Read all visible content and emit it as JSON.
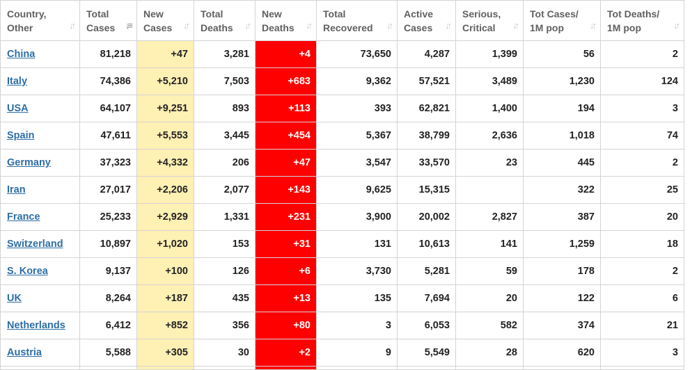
{
  "table": {
    "headers": {
      "country": [
        "Country,",
        "Other"
      ],
      "total_cases": [
        "Total",
        "Cases"
      ],
      "new_cases": [
        "New",
        "Cases"
      ],
      "total_deaths": [
        "Total",
        "Deaths"
      ],
      "new_deaths": [
        "New",
        "Deaths"
      ],
      "total_recovered": [
        "Total",
        "Recovered"
      ],
      "active_cases": [
        "Active",
        "Cases"
      ],
      "serious_critical": [
        "Serious,",
        "Critical"
      ],
      "tot_cases_1m": [
        "Tot Cases/",
        "1M pop"
      ],
      "tot_deaths_1m": [
        "Tot Deaths/",
        "1M pop"
      ]
    },
    "sort_icon": "sort-updown-icon",
    "active_sort_icon": "sort-desc-icon",
    "rows": [
      {
        "country": "China",
        "total_cases": "81,218",
        "new_cases": "+47",
        "total_deaths": "3,281",
        "new_deaths": "+4",
        "total_recovered": "73,650",
        "active_cases": "4,287",
        "serious_critical": "1,399",
        "tot_cases_1m": "56",
        "tot_deaths_1m": "2"
      },
      {
        "country": "Italy",
        "total_cases": "74,386",
        "new_cases": "+5,210",
        "total_deaths": "7,503",
        "new_deaths": "+683",
        "total_recovered": "9,362",
        "active_cases": "57,521",
        "serious_critical": "3,489",
        "tot_cases_1m": "1,230",
        "tot_deaths_1m": "124"
      },
      {
        "country": "USA",
        "total_cases": "64,107",
        "new_cases": "+9,251",
        "total_deaths": "893",
        "new_deaths": "+113",
        "total_recovered": "393",
        "active_cases": "62,821",
        "serious_critical": "1,400",
        "tot_cases_1m": "194",
        "tot_deaths_1m": "3"
      },
      {
        "country": "Spain",
        "total_cases": "47,611",
        "new_cases": "+5,553",
        "total_deaths": "3,445",
        "new_deaths": "+454",
        "total_recovered": "5,367",
        "active_cases": "38,799",
        "serious_critical": "2,636",
        "tot_cases_1m": "1,018",
        "tot_deaths_1m": "74"
      },
      {
        "country": "Germany",
        "total_cases": "37,323",
        "new_cases": "+4,332",
        "total_deaths": "206",
        "new_deaths": "+47",
        "total_recovered": "3,547",
        "active_cases": "33,570",
        "serious_critical": "23",
        "tot_cases_1m": "445",
        "tot_deaths_1m": "2"
      },
      {
        "country": "Iran",
        "total_cases": "27,017",
        "new_cases": "+2,206",
        "total_deaths": "2,077",
        "new_deaths": "+143",
        "total_recovered": "9,625",
        "active_cases": "15,315",
        "serious_critical": "",
        "tot_cases_1m": "322",
        "tot_deaths_1m": "25"
      },
      {
        "country": "France",
        "total_cases": "25,233",
        "new_cases": "+2,929",
        "total_deaths": "1,331",
        "new_deaths": "+231",
        "total_recovered": "3,900",
        "active_cases": "20,002",
        "serious_critical": "2,827",
        "tot_cases_1m": "387",
        "tot_deaths_1m": "20"
      },
      {
        "country": "Switzerland",
        "total_cases": "10,897",
        "new_cases": "+1,020",
        "total_deaths": "153",
        "new_deaths": "+31",
        "total_recovered": "131",
        "active_cases": "10,613",
        "serious_critical": "141",
        "tot_cases_1m": "1,259",
        "tot_deaths_1m": "18"
      },
      {
        "country": "S. Korea",
        "total_cases": "9,137",
        "new_cases": "+100",
        "total_deaths": "126",
        "new_deaths": "+6",
        "total_recovered": "3,730",
        "active_cases": "5,281",
        "serious_critical": "59",
        "tot_cases_1m": "178",
        "tot_deaths_1m": "2"
      },
      {
        "country": "UK",
        "total_cases": "8,264",
        "new_cases": "+187",
        "total_deaths": "435",
        "new_deaths": "+13",
        "total_recovered": "135",
        "active_cases": "7,694",
        "serious_critical": "20",
        "tot_cases_1m": "122",
        "tot_deaths_1m": "6"
      },
      {
        "country": "Netherlands",
        "total_cases": "6,412",
        "new_cases": "+852",
        "total_deaths": "356",
        "new_deaths": "+80",
        "total_recovered": "3",
        "active_cases": "6,053",
        "serious_critical": "582",
        "tot_cases_1m": "374",
        "tot_deaths_1m": "21"
      },
      {
        "country": "Austria",
        "total_cases": "5,588",
        "new_cases": "+305",
        "total_deaths": "30",
        "new_deaths": "+2",
        "total_recovered": "9",
        "active_cases": "5,549",
        "serious_critical": "28",
        "tot_cases_1m": "620",
        "tot_deaths_1m": "3"
      }
    ]
  },
  "colors": {
    "new_cases_bg": "#fff0b4",
    "new_deaths_bg": "#ff0000",
    "link": "#2e6ea6",
    "header_text": "#606060",
    "border": "#d4d4d4"
  }
}
